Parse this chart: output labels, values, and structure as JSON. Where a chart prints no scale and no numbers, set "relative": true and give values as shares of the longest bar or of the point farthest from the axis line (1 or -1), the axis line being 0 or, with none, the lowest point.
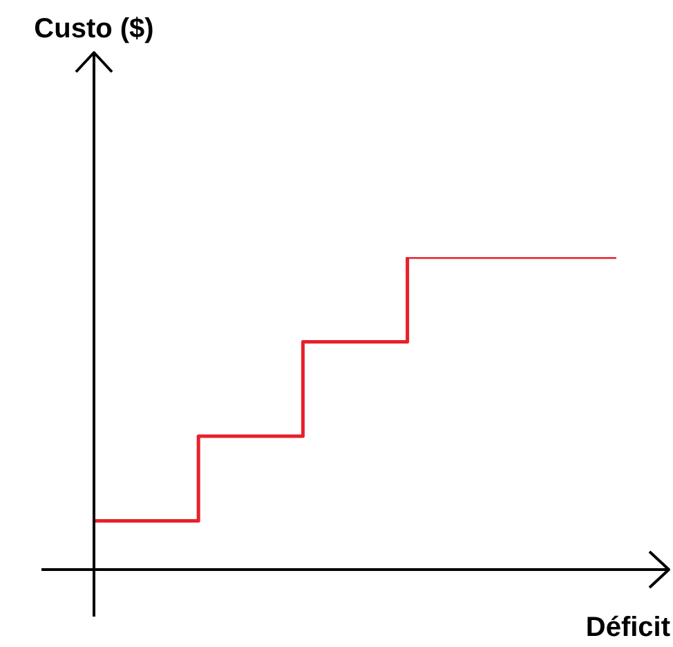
{
  "chart_data": {
    "type": "step",
    "xlabel": "Déficit",
    "annotations": [
      "Custo ($)"
    ],
    "relative": true,
    "categories": [
      null,
      null,
      null,
      null,
      null,
      null
    ],
    "series": [
      {
        "color": "#e8202a",
        "values": [
          0.156,
          0.427,
          0.729,
          1,
          1,
          1
        ]
      }
    ],
    "legend": false,
    "marker": "none",
    "line_style": "solid"
  }
}
